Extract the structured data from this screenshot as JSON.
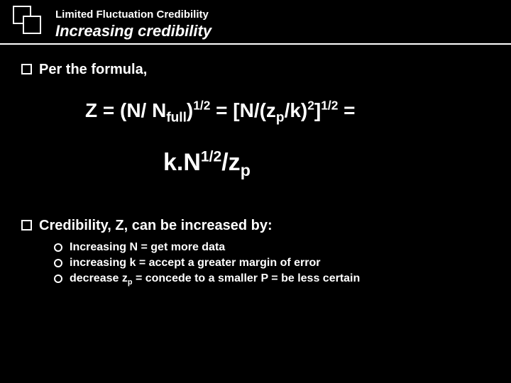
{
  "header": {
    "subtitle": "Limited Fluctuation Credibility",
    "title": "Increasing credibility"
  },
  "bullets": {
    "b1": "Per the formula,",
    "b2": "Credibility, Z, can be increased by:"
  },
  "formula": {
    "z": "Z = (N/ N",
    "full_sub": "full",
    "half_sup": "1/2",
    "mid1": ")",
    "eq1": " = [N/(z",
    "p_sub": "p",
    "mid2": "/k)",
    "two_sup": "2",
    "mid3": "]",
    "eq_end": " =",
    "line2_a": "k.N",
    "line2_b": "/z"
  },
  "subs": {
    "s1": "Increasing N = get more data",
    "s2": "increasing k = accept a greater margin of error",
    "s3_a": "decrease z",
    "s3_b": " = concede to a smaller P = be less certain"
  },
  "colors": {
    "background": "#000000",
    "text": "#ffffff"
  }
}
